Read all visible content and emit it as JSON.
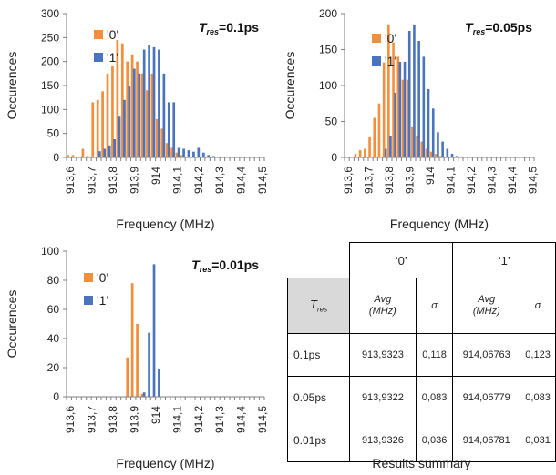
{
  "colors": {
    "zero": "#f28e3c",
    "one": "#4a74bd",
    "axis": "#7f7f7f",
    "table_header_bg": "#d9d9d9"
  },
  "chart_data": [
    {
      "type": "bar",
      "ylabel": "Occurences",
      "xlabel": "Frequency (MHz)",
      "ylim": [
        0,
        300
      ],
      "yticks": [
        0,
        50,
        100,
        150,
        200,
        250,
        300
      ],
      "x_ticks": [
        "913,6",
        "913,7",
        "913,8",
        "913,9",
        "914",
        "914,1",
        "914,2",
        "914,3",
        "914,4",
        "914,5"
      ],
      "annotation_symbol": "T",
      "annotation_subscript": "res",
      "annotation_value": "=0.1ps",
      "legend_position": "top-left",
      "series": [
        {
          "name": "'0'",
          "color": "#f28e3c",
          "values": [
            5,
            5,
            2,
            18,
            3,
            115,
            120,
            138,
            175,
            190,
            245,
            238,
            200,
            215,
            200,
            175,
            140,
            175,
            80,
            60,
            30,
            20,
            10,
            5,
            2,
            2,
            0,
            0,
            0,
            0,
            0,
            0,
            0,
            0,
            0,
            0,
            0,
            0,
            0,
            0
          ]
        },
        {
          "name": "'1'",
          "color": "#4a74bd",
          "values": [
            0,
            0,
            0,
            0,
            0,
            0,
            13,
            18,
            25,
            38,
            85,
            120,
            150,
            185,
            175,
            225,
            235,
            230,
            225,
            175,
            115,
            115,
            20,
            18,
            15,
            12,
            20,
            10,
            5,
            3,
            2,
            0,
            0,
            0,
            0,
            0,
            0,
            0,
            0,
            0
          ]
        }
      ]
    },
    {
      "type": "bar",
      "ylabel": "Occurences",
      "xlabel": "Frequency (MHz)",
      "ylim": [
        0,
        200
      ],
      "yticks": [
        0,
        50,
        100,
        150,
        200
      ],
      "x_ticks": [
        "913,6",
        "913,7",
        "913,8",
        "913,9",
        "914",
        "914,1",
        "914,2",
        "914,3",
        "914,4",
        "914,5"
      ],
      "annotation_symbol": "T",
      "annotation_subscript": "res",
      "annotation_value": "=0.05ps",
      "legend_position": "top-left",
      "series": [
        {
          "name": "'0'",
          "color": "#f28e3c",
          "values": [
            1,
            1,
            5,
            10,
            12,
            28,
            55,
            75,
            132,
            185,
            160,
            140,
            108,
            108,
            42,
            30,
            22,
            12,
            8,
            5,
            2,
            0,
            0,
            0,
            0,
            0,
            0,
            0,
            0,
            0,
            0,
            0,
            0,
            0,
            0,
            0,
            0,
            0,
            0,
            0
          ]
        },
        {
          "name": "'1'",
          "color": "#4a74bd",
          "values": [
            0,
            0,
            0,
            0,
            0,
            0,
            0,
            0,
            12,
            30,
            90,
            133,
            133,
            176,
            185,
            162,
            140,
            95,
            68,
            35,
            22,
            12,
            5,
            2,
            0,
            0,
            0,
            0,
            0,
            0,
            0,
            0,
            0,
            0,
            0,
            0,
            0,
            0,
            0,
            0
          ]
        }
      ]
    },
    {
      "type": "bar",
      "ylabel": "Occurences",
      "xlabel": "Frequency (MHz)",
      "ylim": [
        0,
        100
      ],
      "yticks": [
        0,
        20,
        40,
        60,
        80,
        100
      ],
      "x_ticks": [
        "913,6",
        "913,7",
        "913,8",
        "913,9",
        "914",
        "914,1",
        "914,2",
        "914,3",
        "914,4",
        "914,5"
      ],
      "annotation_symbol": "T",
      "annotation_subscript": "res",
      "annotation_value": "=0.01ps",
      "legend_position": "top-left",
      "series": [
        {
          "name": "'0'",
          "color": "#f28e3c",
          "values": [
            0,
            0,
            0,
            0,
            0,
            0,
            0,
            0,
            0,
            0,
            0,
            0,
            27,
            78,
            50,
            2,
            0,
            0,
            0,
            0,
            0,
            0,
            0,
            0,
            0,
            0,
            0,
            0,
            0,
            0,
            0,
            0,
            0,
            0,
            0,
            0,
            0,
            0,
            0,
            0
          ]
        },
        {
          "name": "'1'",
          "color": "#4a74bd",
          "values": [
            0,
            0,
            0,
            0,
            0,
            0,
            0,
            0,
            0,
            0,
            0,
            0,
            0,
            0,
            0,
            3,
            44,
            91,
            19,
            0,
            0,
            0,
            0,
            0,
            0,
            0,
            0,
            0,
            0,
            0,
            0,
            0,
            0,
            0,
            0,
            0,
            0,
            0,
            0,
            0
          ]
        }
      ]
    },
    {
      "type": "table",
      "title": "Results summary",
      "group_headers": [
        "‘0’",
        "‘1’"
      ],
      "row_header": {
        "symbol": "T",
        "subscript": "res"
      },
      "avg_label_line1": "Avg",
      "avg_label_line2": "(MHz)",
      "sigma_label": "σ",
      "rows": [
        {
          "label": "0.1ps",
          "avg0": "913,9323",
          "sigma0": "0,118",
          "avg1": "914,06763",
          "sigma1": "0,123"
        },
        {
          "label": "0.05ps",
          "avg0": "913,9322",
          "sigma0": "0,083",
          "avg1": "914,06779",
          "sigma1": "0,083"
        },
        {
          "label": "0.01ps",
          "avg0": "913,9326",
          "sigma0": "0,036",
          "avg1": "914,06781",
          "sigma1": "0,031"
        }
      ]
    }
  ]
}
